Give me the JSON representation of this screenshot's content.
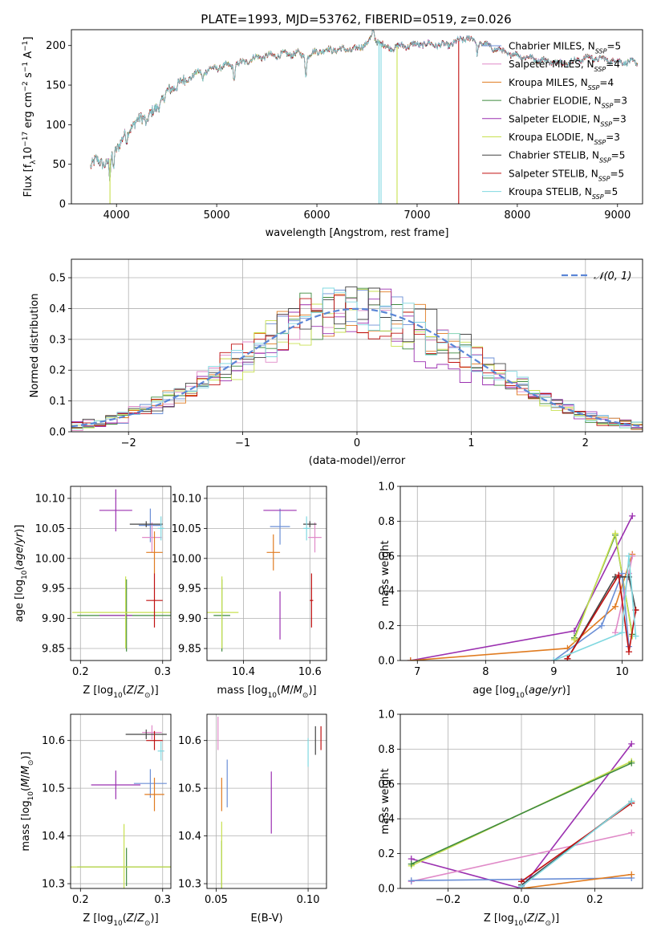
{
  "figure_title": "PLATE=1993, MJD=53762, FIBERID=0519, z=0.026",
  "colors": {
    "Chabrier MILES": "#6b8fd6",
    "Salpeter MILES": "#e08ac8",
    "Kroupa MILES": "#e07b20",
    "Chabrier ELODIE": "#3f8a3f",
    "Salpeter ELODIE": "#9b30b0",
    "Kroupa ELODIE": "#c8e050",
    "Chabrier STELIB": "#444444",
    "Salpeter STELIB": "#c01010",
    "Kroupa STELIB": "#80d8e0"
  },
  "chart_data": [
    {
      "id": "spectrum",
      "type": "line",
      "xlabel": "wavelength [Angstrom, rest frame]",
      "ylabel": "Flux [f_λ10^{-17} erg cm^{-2} s^{-1} A^{-1}]",
      "xlim": [
        3550,
        9250
      ],
      "ylim": [
        0,
        220
      ],
      "xticks": [
        4000,
        5000,
        6000,
        7000,
        8000,
        9000
      ],
      "yticks": [
        0,
        50,
        100,
        150,
        200
      ],
      "grid": false,
      "legend_position": "right",
      "legend": [
        {
          "name": "Chabrier MILES",
          "nssp": "5"
        },
        {
          "name": "Salpeter MILES",
          "nssp": "4"
        },
        {
          "name": "Kroupa MILES",
          "nssp": "4"
        },
        {
          "name": "Chabrier ELODIE",
          "nssp": "3"
        },
        {
          "name": "Salpeter ELODIE",
          "nssp": "3"
        },
        {
          "name": "Kroupa ELODIE",
          "nssp": "3"
        },
        {
          "name": "Chabrier STELIB",
          "nssp": "5"
        },
        {
          "name": "Salpeter STELIB",
          "nssp": "5"
        },
        {
          "name": "Kroupa STELIB",
          "nssp": "5"
        }
      ],
      "continuum": [
        [
          3740,
          48
        ],
        [
          3800,
          55
        ],
        [
          3900,
          50
        ],
        [
          3950,
          60
        ],
        [
          4000,
          70
        ],
        [
          4100,
          90
        ],
        [
          4200,
          105
        ],
        [
          4300,
          110
        ],
        [
          4400,
          120
        ],
        [
          4500,
          140
        ],
        [
          4600,
          150
        ],
        [
          4800,
          165
        ],
        [
          5000,
          172
        ],
        [
          5200,
          176
        ],
        [
          5400,
          185
        ],
        [
          5600,
          188
        ],
        [
          5800,
          190
        ],
        [
          5900,
          186
        ],
        [
          6000,
          193
        ],
        [
          6200,
          195
        ],
        [
          6400,
          195
        ],
        [
          6563,
          210
        ],
        [
          6700,
          197
        ],
        [
          6900,
          200
        ],
        [
          7100,
          202
        ],
        [
          7300,
          200
        ],
        [
          7500,
          210
        ],
        [
          7700,
          200
        ],
        [
          7900,
          190
        ],
        [
          8100,
          185
        ],
        [
          8300,
          180
        ],
        [
          8500,
          178
        ],
        [
          8700,
          185
        ],
        [
          8900,
          182
        ],
        [
          9000,
          180
        ],
        [
          9200,
          178
        ]
      ],
      "model_cutoffs": [
        {
          "wavelength": 3935,
          "series": "Kroupa ELODIE"
        },
        {
          "wavelength": 6620,
          "series": "Kroupa STELIB"
        },
        {
          "wavelength": 6640,
          "series": "Kroupa STELIB"
        },
        {
          "wavelength": 6800,
          "series": "Kroupa ELODIE"
        },
        {
          "wavelength": 7415,
          "series": "Salpeter STELIB"
        }
      ]
    },
    {
      "id": "residuals",
      "type": "histogram",
      "xlabel": "(data-model)/error",
      "ylabel": "Normed distribution",
      "xlim": [
        -2.5,
        2.5
      ],
      "ylim": [
        0,
        0.56
      ],
      "xticks": [
        -2,
        -1,
        0,
        1,
        2
      ],
      "yticks": [
        0.0,
        0.1,
        0.2,
        0.3,
        0.4,
        0.5
      ],
      "grid": true,
      "legend_position": "top-right",
      "reference_curve": {
        "label": "𝒩(0, 1)",
        "mean": 0,
        "sigma": 1
      },
      "bin_width": 0.1
    },
    {
      "id": "age_vs_Z",
      "type": "errorbar",
      "xlabel": "Z [log10(Z/Z⊙)]",
      "ylabel": "age  [log10(age/yr)]",
      "xlim": [
        0.188,
        0.31
      ],
      "ylim": [
        9.83,
        10.12
      ],
      "xticks": [
        0.2,
        0.3
      ],
      "yticks": [
        9.85,
        9.9,
        9.95,
        10.0,
        10.05,
        10.1
      ],
      "grid": true,
      "points": [
        {
          "series": "Chabrier MILES",
          "x": 0.285,
          "y": 10.055,
          "xerr": 0.014,
          "yerr": 0.028
        },
        {
          "series": "Salpeter MILES",
          "x": 0.287,
          "y": 10.035,
          "xerr": 0.012,
          "yerr": 0.025
        },
        {
          "series": "Kroupa MILES",
          "x": 0.29,
          "y": 10.01,
          "xerr": 0.01,
          "yerr": 0.035
        },
        {
          "series": "Chabrier ELODIE",
          "x": 0.256,
          "y": 9.905,
          "xerr": 0.06,
          "yerr": 0.06
        },
        {
          "series": "Salpeter ELODIE",
          "x": 0.243,
          "y": 10.08,
          "xerr": 0.02,
          "yerr": 0.035
        },
        {
          "series": "Salpeter ELODIE",
          "x": 0.243,
          "y": 9.905,
          "xerr": 0.02,
          "yerr": 0.0
        },
        {
          "series": "Kroupa ELODIE",
          "x": 0.255,
          "y": 9.91,
          "xerr": 0.065,
          "yerr": 0.06
        },
        {
          "series": "Chabrier STELIB",
          "x": 0.28,
          "y": 10.057,
          "xerr": 0.02,
          "yerr": 0.005
        },
        {
          "series": "Salpeter STELIB",
          "x": 0.29,
          "y": 9.93,
          "xerr": 0.01,
          "yerr": 0.045
        },
        {
          "series": "Kroupa STELIB",
          "x": 0.298,
          "y": 10.05,
          "xerr": 0.004,
          "yerr": 0.02
        }
      ]
    },
    {
      "id": "age_vs_mass",
      "type": "errorbar",
      "xlabel": "mass [log10(M/M⊙)]",
      "ylabel": "",
      "xlim": [
        10.29,
        10.65
      ],
      "ylim": [
        9.83,
        10.12
      ],
      "xticks": [
        10.4,
        10.6
      ],
      "yticks": [
        9.85,
        9.9,
        9.95,
        10.0,
        10.05,
        10.1
      ],
      "grid": true,
      "points": [
        {
          "series": "Chabrier MILES",
          "x": 10.51,
          "y": 10.053,
          "xerr": 0.03,
          "yerr": 0.03
        },
        {
          "series": "Salpeter MILES",
          "x": 10.615,
          "y": 10.035,
          "xerr": 0.02,
          "yerr": 0.025
        },
        {
          "series": "Kroupa MILES",
          "x": 10.49,
          "y": 10.01,
          "xerr": 0.02,
          "yerr": 0.03
        },
        {
          "series": "Chabrier ELODIE",
          "x": 10.335,
          "y": 9.905,
          "xerr": 0.025,
          "yerr": 0.06
        },
        {
          "series": "Salpeter ELODIE",
          "x": 10.51,
          "y": 10.08,
          "xerr": 0.05,
          "yerr": 0.0
        },
        {
          "series": "Salpeter ELODIE",
          "x": 10.51,
          "y": 9.905,
          "xerr": 0.0,
          "yerr": 0.04
        },
        {
          "series": "Kroupa ELODIE",
          "x": 10.335,
          "y": 9.91,
          "xerr": 0.05,
          "yerr": 0.06
        },
        {
          "series": "Chabrier STELIB",
          "x": 10.6,
          "y": 10.057,
          "xerr": 0.02,
          "yerr": 0.005
        },
        {
          "series": "Salpeter STELIB",
          "x": 10.605,
          "y": 9.93,
          "xerr": 0.005,
          "yerr": 0.045
        },
        {
          "series": "Kroupa STELIB",
          "x": 10.59,
          "y": 10.05,
          "xerr": 0.01,
          "yerr": 0.02
        }
      ]
    },
    {
      "id": "weight_vs_age",
      "type": "line",
      "xlabel": "age  [log10(age/yr)]",
      "ylabel": "mass weight",
      "xlim": [
        6.75,
        10.3
      ],
      "ylim": [
        0,
        1.0
      ],
      "xticks": [
        7,
        8,
        9,
        10
      ],
      "yticks": [
        0.0,
        0.2,
        0.4,
        0.6,
        0.8,
        1.0
      ],
      "grid": true,
      "series": [
        {
          "name": "Salpeter ELODIE",
          "points": [
            [
              6.9,
              0.0
            ],
            [
              9.3,
              0.17
            ],
            [
              10.15,
              0.83
            ]
          ]
        },
        {
          "name": "Kroupa MILES",
          "points": [
            [
              6.9,
              0.0
            ],
            [
              9.2,
              0.07
            ],
            [
              9.9,
              0.31
            ],
            [
              10.15,
              0.61
            ]
          ]
        },
        {
          "name": "Chabrier ELODIE",
          "points": [
            [
              9.3,
              0.13
            ],
            [
              9.9,
              0.72
            ],
            [
              10.15,
              0.15
            ]
          ]
        },
        {
          "name": "Kroupa ELODIE",
          "points": [
            [
              9.3,
              0.12
            ],
            [
              9.9,
              0.73
            ],
            [
              10.15,
              0.14
            ]
          ]
        },
        {
          "name": "Chabrier MILES",
          "points": [
            [
              9.0,
              0.0
            ],
            [
              9.7,
              0.2
            ],
            [
              10.0,
              0.5
            ],
            [
              10.1,
              0.08
            ]
          ]
        },
        {
          "name": "Salpeter MILES",
          "points": [
            [
              9.9,
              0.16
            ],
            [
              10.1,
              0.5
            ],
            [
              10.15,
              0.6
            ]
          ]
        },
        {
          "name": "Chabrier STELIB",
          "points": [
            [
              9.2,
              0.01
            ],
            [
              9.9,
              0.48
            ],
            [
              10.1,
              0.48
            ],
            [
              10.2,
              0.29
            ]
          ]
        },
        {
          "name": "Salpeter STELIB",
          "points": [
            [
              9.2,
              0.01
            ],
            [
              9.95,
              0.49
            ],
            [
              10.1,
              0.05
            ],
            [
              10.2,
              0.29
            ]
          ]
        },
        {
          "name": "Kroupa STELIB",
          "points": [
            [
              9.0,
              0.0
            ],
            [
              10.0,
              0.16
            ],
            [
              10.1,
              0.6
            ],
            [
              10.2,
              0.14
            ]
          ]
        }
      ]
    },
    {
      "id": "mass_vs_Z",
      "type": "errorbar",
      "xlabel": "Z [log10(Z/Z⊙)]",
      "ylabel": "mass [log10(M/M⊙)]",
      "xlim": [
        0.188,
        0.31
      ],
      "ylim": [
        10.29,
        10.655
      ],
      "xticks": [
        0.2,
        0.3
      ],
      "yticks": [
        10.3,
        10.4,
        10.5,
        10.6
      ],
      "grid": true,
      "points": [
        {
          "series": "Chabrier MILES",
          "x": 0.285,
          "y": 10.51,
          "xerr": 0.02,
          "yerr": 0.03
        },
        {
          "series": "Salpeter MILES",
          "x": 0.287,
          "y": 10.617,
          "xerr": 0.012,
          "yerr": 0.015
        },
        {
          "series": "Kroupa MILES",
          "x": 0.29,
          "y": 10.487,
          "xerr": 0.012,
          "yerr": 0.035
        },
        {
          "series": "Chabrier ELODIE",
          "x": 0.256,
          "y": 10.335,
          "xerr": 0.06,
          "yerr": 0.04
        },
        {
          "series": "Salpeter ELODIE",
          "x": 0.243,
          "y": 10.507,
          "xerr": 0.03,
          "yerr": 0.03
        },
        {
          "series": "Kroupa ELODIE",
          "x": 0.253,
          "y": 10.335,
          "xerr": 0.065,
          "yerr": 0.09
        },
        {
          "series": "Chabrier STELIB",
          "x": 0.28,
          "y": 10.613,
          "xerr": 0.025,
          "yerr": 0.01
        },
        {
          "series": "Salpeter STELIB",
          "x": 0.29,
          "y": 10.6,
          "xerr": 0.01,
          "yerr": 0.02
        },
        {
          "series": "Kroupa STELIB",
          "x": 0.298,
          "y": 10.578,
          "xerr": 0.004,
          "yerr": 0.02
        }
      ]
    },
    {
      "id": "mass_vs_ebv",
      "type": "errorbar",
      "xlabel": "E(B-V)",
      "ylabel": "",
      "xlim": [
        0.045,
        0.11
      ],
      "ylim": [
        10.29,
        10.655
      ],
      "xticks": [
        0.05,
        0.1
      ],
      "yticks": [
        10.3,
        10.4,
        10.5,
        10.6
      ],
      "grid": true,
      "points": [
        {
          "series": "Chabrier MILES",
          "x": 0.056,
          "y": 10.51,
          "xerr": 0.0,
          "yerr": 0.05
        },
        {
          "series": "Salpeter MILES",
          "x": 0.051,
          "y": 10.615,
          "xerr": 0.0,
          "yerr": 0.035
        },
        {
          "series": "Kroupa MILES",
          "x": 0.053,
          "y": 10.487,
          "xerr": 0.0,
          "yerr": 0.035
        },
        {
          "series": "Chabrier ELODIE",
          "x": 0.053,
          "y": 10.34,
          "xerr": 0.0,
          "yerr": 0.05
        },
        {
          "series": "Salpeter ELODIE",
          "x": 0.08,
          "y": 10.47,
          "xerr": 0.0,
          "yerr": 0.065
        },
        {
          "series": "Kroupa ELODIE",
          "x": 0.053,
          "y": 10.36,
          "xerr": 0.0,
          "yerr": 0.07
        },
        {
          "series": "Chabrier STELIB",
          "x": 0.104,
          "y": 10.6,
          "xerr": 0.0,
          "yerr": 0.03
        },
        {
          "series": "Salpeter STELIB",
          "x": 0.107,
          "y": 10.605,
          "xerr": 0.0,
          "yerr": 0.025
        },
        {
          "series": "Kroupa STELIB",
          "x": 0.1,
          "y": 10.575,
          "xerr": 0.0,
          "yerr": 0.03
        }
      ]
    },
    {
      "id": "weight_vs_Z",
      "type": "line",
      "xlabel": "Z [log10(Z/Z⊙)]",
      "ylabel": "mass weight",
      "xlim": [
        -0.33,
        0.33
      ],
      "ylim": [
        0,
        1.0
      ],
      "xticks": [
        -0.2,
        0.0,
        0.2
      ],
      "yticks": [
        0.0,
        0.2,
        0.4,
        0.6,
        0.8,
        1.0
      ],
      "grid": true,
      "series": [
        {
          "name": "Salpeter ELODIE",
          "points": [
            [
              -0.3,
              0.17
            ],
            [
              0.0,
              0.0
            ],
            [
              0.3,
              0.83
            ]
          ]
        },
        {
          "name": "Kroupa ELODIE",
          "points": [
            [
              -0.3,
              0.13
            ],
            [
              0.3,
              0.73
            ]
          ]
        },
        {
          "name": "Chabrier ELODIE",
          "points": [
            [
              -0.3,
              0.14
            ],
            [
              0.3,
              0.72
            ]
          ]
        },
        {
          "name": "Salpeter MILES",
          "points": [
            [
              -0.3,
              0.04
            ],
            [
              0.3,
              0.32
            ]
          ]
        },
        {
          "name": "Chabrier MILES",
          "points": [
            [
              -0.3,
              0.045
            ],
            [
              0.3,
              0.06
            ]
          ]
        },
        {
          "name": "Kroupa MILES",
          "points": [
            [
              0.0,
              0.0
            ],
            [
              0.3,
              0.08
            ]
          ]
        },
        {
          "name": "Chabrier STELIB",
          "points": [
            [
              0.0,
              0.02
            ],
            [
              0.3,
              0.5
            ]
          ]
        },
        {
          "name": "Salpeter STELIB",
          "points": [
            [
              0.0,
              0.04
            ],
            [
              0.3,
              0.49
            ]
          ]
        },
        {
          "name": "Kroupa STELIB",
          "points": [
            [
              0.0,
              0.01
            ],
            [
              0.3,
              0.5
            ]
          ]
        }
      ]
    }
  ]
}
